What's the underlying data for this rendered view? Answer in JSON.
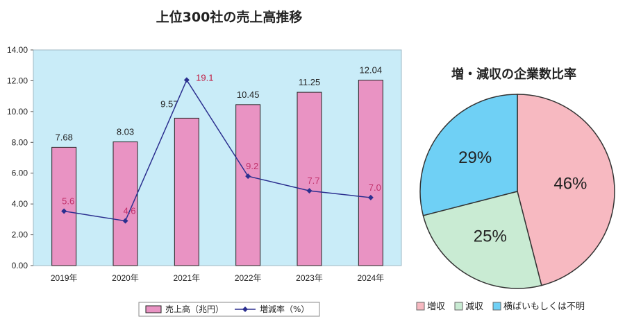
{
  "chart_data": [
    {
      "type": "bar",
      "title": "上位300社の売上高推移",
      "categories": [
        "2019年",
        "2020年",
        "2021年",
        "2022年",
        "2023年",
        "2024年"
      ],
      "ylim": [
        0,
        14
      ],
      "yticks": [
        "0.00",
        "2.00",
        "4.00",
        "6.00",
        "8.00",
        "10.00",
        "12.00",
        "14.00"
      ],
      "series": [
        {
          "name": "売上高（兆円）",
          "type": "bar",
          "values": [
            7.68,
            8.03,
            9.57,
            10.45,
            11.25,
            12.04
          ],
          "labels": [
            "7.68",
            "8.03",
            "9.57",
            "10.45",
            "11.25",
            "12.04"
          ],
          "color": "#e993c3"
        },
        {
          "name": "増減率（%）",
          "type": "line",
          "values": [
            5.6,
            4.6,
            19.1,
            9.2,
            7.7,
            7.0
          ],
          "labels": [
            "5.6",
            "4.6",
            "19.1",
            "9.2",
            "7.7",
            "7.0"
          ],
          "color": "#2b2f8f"
        }
      ],
      "plot_background": "#c9ecf8",
      "legend_position": "bottom"
    },
    {
      "type": "pie",
      "title": "増・減収の企業数比率",
      "slices": [
        {
          "name": "増収",
          "value": 46,
          "label": "46%",
          "color": "#f7b9c1"
        },
        {
          "name": "減収",
          "value": 25,
          "label": "25%",
          "color": "#c9ebd3"
        },
        {
          "name": "横ばいもしくは不明",
          "value": 29,
          "label": "29%",
          "color": "#6fd0f5"
        }
      ],
      "legend_position": "bottom"
    }
  ]
}
